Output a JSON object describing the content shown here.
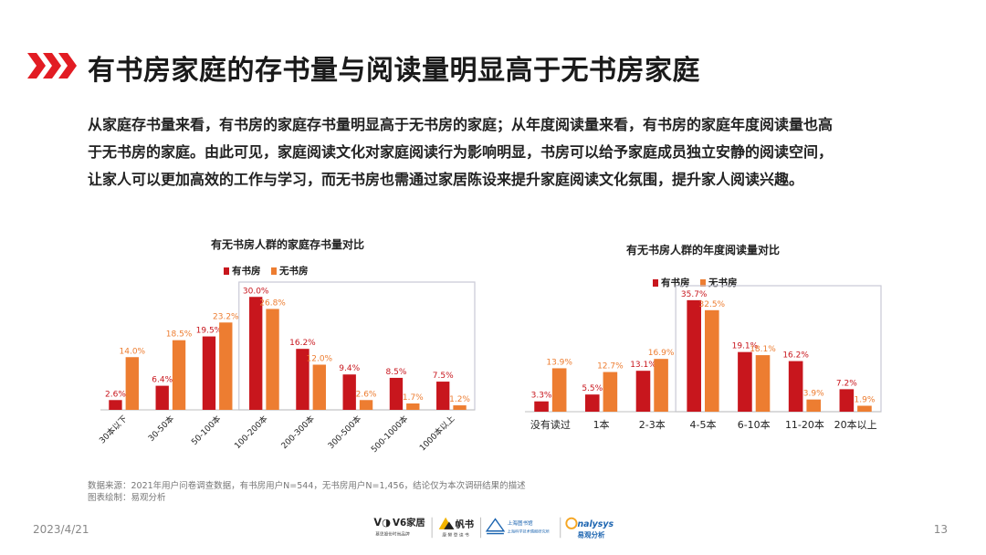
{
  "header": {
    "title": "有书房家庭的存书量与阅读量明显高于无书房家庭"
  },
  "intro": {
    "lines": [
      "从家庭存书量来看，有书房的家庭存书量明显高于无书房的家庭；从年度阅读量来看，有书房的家庭年度阅读量也高",
      "于无书房的家庭。由此可见，家庭阅读文化对家庭阅读行为影响明显，书房可以给予家庭成员独立安静的阅读空间，",
      "让家人可以更加高效的工作与学习，而无书房也需通过家居陈设来提升家庭阅读文化氛围，提升家人阅读兴趣。"
    ]
  },
  "colors": {
    "with_study": "#c8161d",
    "without_study": "#ed7d31",
    "highlight_box": "#c9c9d6",
    "accent": "#e21c23"
  },
  "chart_data": [
    {
      "type": "bar",
      "title": "有无书房人群的家庭存书量对比",
      "categories": [
        "30本以下",
        "30-50本",
        "50-100本",
        "100-200本",
        "200-300本",
        "300-500本",
        "500-1000本",
        "1000本以上"
      ],
      "series": [
        {
          "name": "有书房",
          "values": [
            2.6,
            6.4,
            19.5,
            30.0,
            16.2,
            9.4,
            8.5,
            7.5
          ],
          "labels": [
            "2.6%",
            "6.4%",
            "19.5%",
            "30.0%",
            "16.2%",
            "9.4%",
            "8.5%",
            "7.5%"
          ]
        },
        {
          "name": "无书房",
          "values": [
            14.0,
            18.5,
            23.2,
            26.8,
            12.0,
            2.6,
            1.7,
            1.2
          ],
          "labels": [
            "14.0%",
            "18.5%",
            "23.2%",
            "26.8%",
            "12.0%",
            "2.6%",
            "1.7%",
            "1.2%"
          ]
        }
      ],
      "ylim": [
        0,
        32
      ],
      "legend": "top",
      "highlight": "100-200本 to 1000本以上"
    },
    {
      "type": "bar",
      "title": "有无书房人群的年度阅读量对比",
      "categories": [
        "没有读过",
        "1本",
        "2-3本",
        "4-5本",
        "6-10本",
        "11-20本",
        "20本以上"
      ],
      "series": [
        {
          "name": "有书房",
          "values": [
            3.3,
            5.5,
            13.1,
            35.7,
            19.1,
            16.2,
            7.2
          ],
          "labels": [
            "3.3%",
            "5.5%",
            "13.1%",
            "35.7%",
            "19.1%",
            "16.2%",
            "7.2%"
          ]
        },
        {
          "name": "无书房",
          "values": [
            13.9,
            12.7,
            16.9,
            32.5,
            18.1,
            3.9,
            1.9
          ],
          "labels": [
            "13.9%",
            "12.7%",
            "16.9%",
            "32.5%",
            "18.1%",
            "3.9%",
            "1.9%"
          ]
        }
      ],
      "ylim": [
        0,
        38
      ],
      "legend": "top",
      "highlight": "4-5本 to 20本以上"
    }
  ],
  "notes": {
    "source": "数据来源：2021年用户问卷调查数据，有书房用户N=544，无书房用户N=1,456，结论仅为本次调研结果的描述",
    "credit": "图表绘制：易观分析"
  },
  "footer": {
    "date": "2023/4/21",
    "page": "13",
    "logos": {
      "v6_name": "V6家居",
      "v6_tagline": "慕思股份时尚品牌",
      "fanshu_name": "帆书",
      "fanshu_tagline": "康 樊 登 读 书",
      "library_name": "上海图书馆",
      "library_tagline": "上海科学技术情报研究所",
      "analysys_name": "nalysys",
      "analysys_cn": "易观分析"
    }
  }
}
